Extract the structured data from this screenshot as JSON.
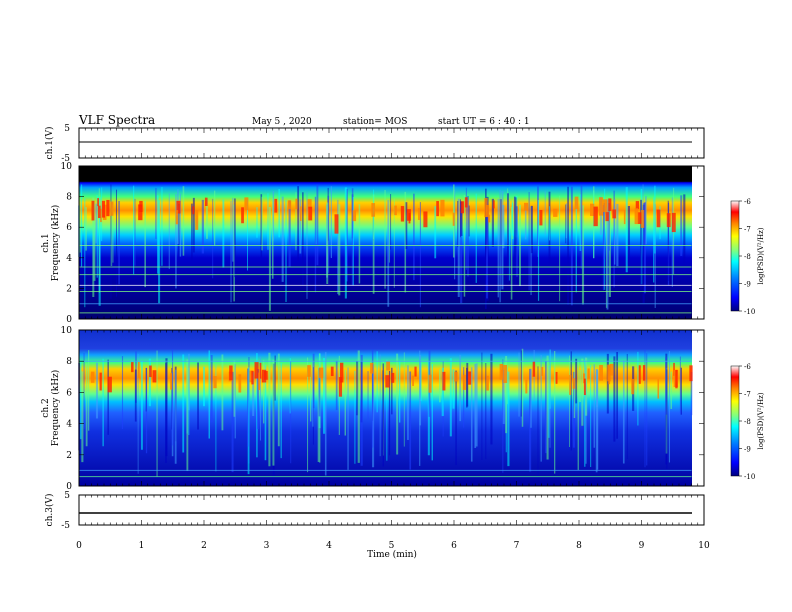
{
  "header": {
    "title": "VLF Spectra",
    "date": "May 5 , 2020",
    "station": "station= MOS",
    "start_ut": "start UT = 6 : 40 : 1"
  },
  "chart_data": [
    {
      "type": "line",
      "panel": "ch1-waveform",
      "ylabel": "ch.1(V)",
      "ylim": [
        -5,
        5
      ],
      "yticks": [
        "5",
        "-5"
      ],
      "xlim": [
        0,
        10
      ],
      "series": [
        {
          "x": [
            0,
            9.8
          ],
          "values": [
            0,
            0
          ]
        }
      ]
    },
    {
      "type": "heatmap",
      "panel": "ch1-spectrogram",
      "ylabel_top": "ch.1",
      "ylabel": "Frequency (kHz)",
      "ylim": [
        0,
        10
      ],
      "yticks": [
        "0",
        "2",
        "4",
        "6",
        "8",
        "10"
      ],
      "xlim": [
        0,
        10
      ],
      "data_extent_min": 9.8,
      "high_intensity_band_khz": [
        5.5,
        7.8
      ],
      "colorbar": {
        "label": "log(PSD)(V²/Hz)",
        "range": [
          -10,
          -6
        ],
        "ticks": [
          "-6",
          "-7",
          "-8",
          "-9",
          "-10"
        ]
      }
    },
    {
      "type": "heatmap",
      "panel": "ch2-spectrogram",
      "ylabel_top": "ch.2",
      "ylabel": "Frequency (kHz)",
      "ylim": [
        0,
        10
      ],
      "yticks": [
        "0",
        "2",
        "4",
        "6",
        "8",
        "10"
      ],
      "xlim": [
        0,
        10
      ],
      "data_extent_min": 9.8,
      "high_intensity_band_khz": [
        5.5,
        7.8
      ],
      "colorbar": {
        "label": "log(PSD)(V²/Hz)",
        "range": [
          -10,
          -6
        ],
        "ticks": [
          "-6",
          "-7",
          "-8",
          "-9",
          "-10"
        ]
      }
    },
    {
      "type": "line",
      "panel": "ch3-waveform",
      "ylabel": "ch.3(V)",
      "ylim": [
        -5,
        5
      ],
      "yticks": [
        "5",
        "-5"
      ],
      "xlim": [
        0,
        10
      ],
      "xlabel": "Time (min)",
      "xticks": [
        "0",
        "1",
        "2",
        "3",
        "4",
        "5",
        "6",
        "7",
        "8",
        "9",
        "10"
      ],
      "series": [
        {
          "x": [
            0,
            9.8
          ],
          "values": [
            -1.8,
            -1.8
          ]
        }
      ]
    }
  ],
  "colors": {
    "colormap": [
      "#00007f",
      "#0000ff",
      "#0080ff",
      "#00ffff",
      "#80ff80",
      "#ffff00",
      "#ff8000",
      "#ff0000",
      "#7f0000"
    ],
    "axis": "#000000",
    "background_top_band": "#000000"
  }
}
